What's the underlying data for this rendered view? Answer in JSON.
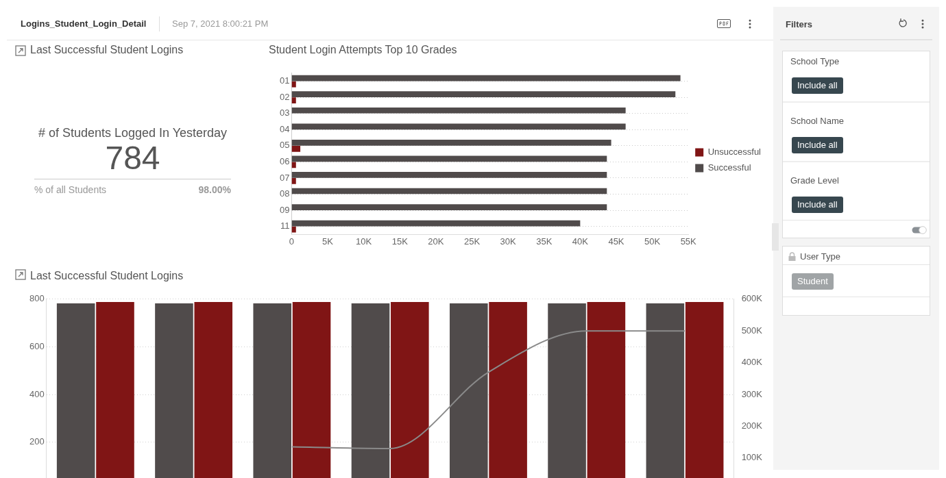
{
  "chart_data": [
    {
      "type": "other",
      "title": "Logins_Student_Login_Detail",
      "annotations": [
        "Sep 7, 2021 8:00:21 PM"
      ]
    },
    {
      "type": "other",
      "title": "Last Successful Student Logins",
      "annotations": [
        "# of Students Logged In Yesterday",
        "784",
        "% of all Students",
        "98.00%"
      ]
    },
    {
      "type": "bar",
      "title": "Student Login Attempts Top 10 Grades",
      "orientation": "horizontal",
      "categories": [
        "01",
        "02",
        "03",
        "04",
        "05",
        "06",
        "07",
        "08",
        "09",
        "11"
      ],
      "series": [
        {
          "name": "Successful",
          "color": "#504b4b",
          "values": [
            53900,
            53200,
            46300,
            46300,
            44300,
            43700,
            43700,
            43700,
            43700,
            40000
          ]
        },
        {
          "name": "Unsuccessful",
          "color": "#801515",
          "values": [
            600,
            600,
            0,
            0,
            1200,
            600,
            600,
            0,
            0,
            600
          ]
        }
      ],
      "xlim": [
        0,
        55000
      ],
      "xticks": [
        {
          "value": 0,
          "label": "0"
        },
        {
          "value": 5000,
          "label": "5K"
        },
        {
          "value": 10000,
          "label": "10K"
        },
        {
          "value": 15000,
          "label": "15K"
        },
        {
          "value": 20000,
          "label": "20K"
        },
        {
          "value": 25000,
          "label": "25K"
        },
        {
          "value": 30000,
          "label": "30K"
        },
        {
          "value": 35000,
          "label": "35K"
        },
        {
          "value": 40000,
          "label": "40K"
        },
        {
          "value": 45000,
          "label": "45K"
        },
        {
          "value": 50000,
          "label": "50K"
        },
        {
          "value": 55000,
          "label": "55K"
        }
      ],
      "grid": "y",
      "legend": "right"
    },
    {
      "type": "bar",
      "title": "Last Successful Student Logins",
      "categories": [
        null,
        null,
        null,
        null,
        null,
        null,
        null
      ],
      "series": [
        {
          "color": "#504b4b",
          "values": [
            782,
            782,
            782,
            782,
            782,
            782,
            782
          ]
        },
        {
          "color": "#801515",
          "values": [
            788,
            788,
            788,
            788,
            788,
            788,
            788
          ]
        },
        {
          "type": "line",
          "axis": "y2",
          "color": "#8a8a8a",
          "values": [
            null,
            null,
            135000,
            130000,
            370000,
            500000,
            500000
          ]
        }
      ],
      "ylim": [
        0,
        800
      ],
      "yticks": [
        200,
        400,
        600,
        800
      ],
      "y2lim": [
        0,
        600000
      ],
      "y2ticks": [
        {
          "value": 100000,
          "label": "100K"
        },
        {
          "value": 200000,
          "label": "200K"
        },
        {
          "value": 300000,
          "label": "300K"
        },
        {
          "value": 400000,
          "label": "400K"
        },
        {
          "value": 500000,
          "label": "500K"
        },
        {
          "value": 600000,
          "label": "600K"
        }
      ],
      "grid": "y"
    },
    {
      "type": "other",
      "title": "Filters",
      "annotations": [
        "School Type",
        "Include all",
        "School Name",
        "Include all",
        "Grade Level",
        "Include all",
        "User Type",
        "Student"
      ]
    }
  ]
}
